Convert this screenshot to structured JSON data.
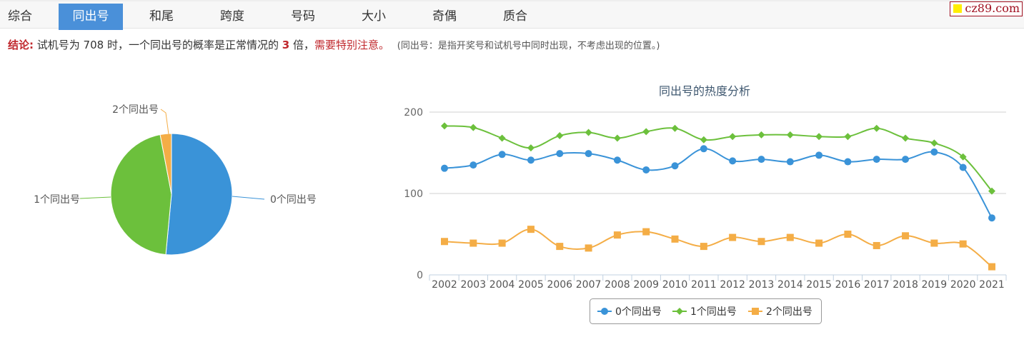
{
  "tabs": [
    {
      "label": "综合"
    },
    {
      "label": "同出号",
      "active": true
    },
    {
      "label": "和尾"
    },
    {
      "label": "跨度"
    },
    {
      "label": "号码"
    },
    {
      "label": "大小"
    },
    {
      "label": "奇偶"
    },
    {
      "label": "质合"
    }
  ],
  "logo": {
    "text": "cz89.com",
    "square_color": "#ffee00"
  },
  "conclusion": {
    "label": "结论:",
    "prefix": "试机号为 708 时，一个同出号的概率是正常情况的",
    "multiple": "3",
    "suffix": "倍，",
    "warning": "需要特别注意。",
    "note": "(同出号：是指开奖号和试机号中同时出现，不考虑出现的位置。)"
  },
  "colors": {
    "s0": "#3a93d8",
    "s1": "#6cc03c",
    "s2": "#f4ad46",
    "active_tab": "#4a90d9"
  },
  "chart_data": [
    {
      "type": "pie",
      "labels": [
        "0个同出号",
        "1个同出号",
        "2个同出号"
      ],
      "values": [
        51.5,
        45.5,
        3
      ]
    },
    {
      "type": "line",
      "title": "同出号的热度分析",
      "categories": [
        "2002",
        "2003",
        "2004",
        "2005",
        "2006",
        "2007",
        "2008",
        "2009",
        "2010",
        "2011",
        "2012",
        "2013",
        "2014",
        "2015",
        "2016",
        "2017",
        "2018",
        "2019",
        "2020",
        "2021"
      ],
      "ylim": [
        0,
        200
      ],
      "yticks": [
        "0",
        "100",
        "200"
      ],
      "grid": true,
      "legend": "bottom",
      "series": [
        {
          "name": "0个同出号",
          "marker": "circle",
          "values": [
            131,
            135,
            148,
            141,
            149,
            149,
            141,
            129,
            134,
            155,
            140,
            142,
            139,
            147,
            139,
            142,
            142,
            151,
            132,
            70
          ]
        },
        {
          "name": "1个同出号",
          "marker": "diamond",
          "values": [
            183,
            181,
            168,
            156,
            171,
            175,
            168,
            176,
            180,
            166,
            170,
            172,
            172,
            170,
            170,
            180,
            168,
            162,
            145,
            103
          ]
        },
        {
          "name": "2个同出号",
          "marker": "square",
          "values": [
            41,
            39,
            39,
            56,
            35,
            33,
            49,
            53,
            44,
            35,
            46,
            41,
            46,
            39,
            50,
            36,
            48,
            39,
            38,
            10
          ]
        }
      ]
    }
  ]
}
